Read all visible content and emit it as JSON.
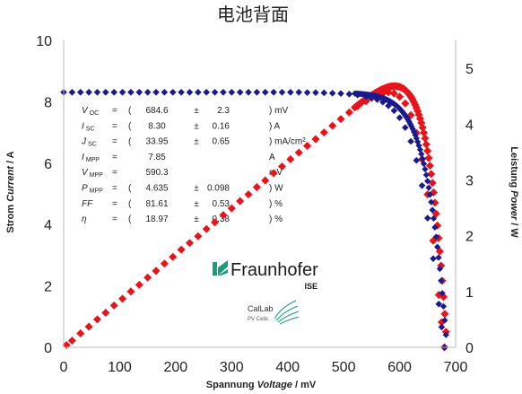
{
  "chart_data": {
    "type": "scatter",
    "title": "电池背面",
    "xlabel": {
      "pre": "Spannung ",
      "italic": "Voltage",
      "post": " / mV"
    },
    "ylabel": {
      "pre": "Strom ",
      "italic": "Current",
      "post": " / A"
    },
    "y2label": {
      "pre": "Leistung ",
      "italic": "Power",
      "post": " / W"
    },
    "xlim": [
      0,
      700
    ],
    "ylim": [
      0,
      10
    ],
    "y2lim": [
      0,
      5.5
    ],
    "x_ticks": [
      "0",
      "100",
      "200",
      "300",
      "400",
      "500",
      "600",
      "700"
    ],
    "y_ticks": [
      "0",
      "2",
      "4",
      "6",
      "8",
      "10"
    ],
    "y2_ticks": [
      "0",
      "1",
      "2",
      "3",
      "4",
      "5"
    ],
    "grid": false,
    "legend": "none",
    "colors": {
      "current": "#1a1a8c",
      "power": "#e8141b"
    },
    "model": {
      "Isc": 8.3,
      "Voc": 684.6,
      "Vt": 27.8,
      "Rs": 1.0
    },
    "series": [
      {
        "key": "current",
        "axis": "left",
        "points": [
          [
            0,
            8.31
          ],
          [
            15,
            8.31
          ],
          [
            30,
            8.31
          ],
          [
            45,
            8.31
          ],
          [
            60,
            8.31
          ],
          [
            75,
            8.31
          ],
          [
            90,
            8.31
          ],
          [
            105,
            8.31
          ],
          [
            120,
            8.31
          ],
          [
            135,
            8.31
          ],
          [
            150,
            8.31
          ],
          [
            165,
            8.31
          ],
          [
            180,
            8.31
          ],
          [
            195,
            8.31
          ],
          [
            210,
            8.31
          ],
          [
            225,
            8.31
          ],
          [
            240,
            8.31
          ],
          [
            255,
            8.31
          ],
          [
            270,
            8.31
          ],
          [
            285,
            8.31
          ],
          [
            300,
            8.31
          ],
          [
            315,
            8.31
          ],
          [
            330,
            8.31
          ],
          [
            345,
            8.31
          ],
          [
            360,
            8.31
          ],
          [
            375,
            8.31
          ],
          [
            390,
            8.31
          ],
          [
            405,
            8.31
          ],
          [
            420,
            8.31
          ],
          [
            435,
            8.3
          ],
          [
            450,
            8.3
          ],
          [
            465,
            8.29
          ],
          [
            480,
            8.28
          ],
          [
            495,
            8.27
          ],
          [
            510,
            8.25
          ],
          [
            525,
            8.22
          ],
          [
            540,
            8.17
          ],
          [
            550,
            8.13
          ],
          [
            560,
            8.07
          ],
          [
            570,
            7.99
          ],
          [
            580,
            7.87
          ],
          [
            590,
            7.71
          ],
          [
            600,
            7.48
          ],
          [
            610,
            7.16
          ],
          [
            620,
            6.71
          ],
          [
            630,
            6.09
          ],
          [
            640,
            5.27
          ],
          [
            650,
            4.21
          ],
          [
            660,
            2.89
          ],
          [
            670,
            1.41
          ],
          [
            675,
            0.66
          ],
          [
            680,
            0.0
          ]
        ]
      },
      {
        "key": "power",
        "axis": "right",
        "points": [
          [
            5,
            0.04
          ],
          [
            15,
            0.12
          ],
          [
            30,
            0.25
          ],
          [
            45,
            0.37
          ],
          [
            60,
            0.5
          ],
          [
            75,
            0.62
          ],
          [
            90,
            0.75
          ],
          [
            105,
            0.87
          ],
          [
            120,
            1.0
          ],
          [
            135,
            1.12
          ],
          [
            150,
            1.25
          ],
          [
            165,
            1.37
          ],
          [
            180,
            1.5
          ],
          [
            195,
            1.62
          ],
          [
            210,
            1.75
          ],
          [
            225,
            1.87
          ],
          [
            240,
            1.99
          ],
          [
            255,
            2.12
          ],
          [
            270,
            2.24
          ],
          [
            285,
            2.37
          ],
          [
            300,
            2.49
          ],
          [
            315,
            2.62
          ],
          [
            330,
            2.74
          ],
          [
            345,
            2.87
          ],
          [
            360,
            2.99
          ],
          [
            375,
            3.12
          ],
          [
            390,
            3.24
          ],
          [
            405,
            3.37
          ],
          [
            420,
            3.49
          ],
          [
            435,
            3.61
          ],
          [
            450,
            3.73
          ],
          [
            465,
            3.85
          ],
          [
            480,
            3.97
          ],
          [
            495,
            4.09
          ],
          [
            510,
            4.21
          ],
          [
            525,
            4.32
          ],
          [
            540,
            4.41
          ],
          [
            550,
            4.47
          ],
          [
            560,
            4.52
          ],
          [
            570,
            4.55
          ],
          [
            580,
            4.57
          ],
          [
            590,
            4.55
          ],
          [
            600,
            4.49
          ],
          [
            610,
            4.37
          ],
          [
            620,
            4.16
          ],
          [
            630,
            3.84
          ],
          [
            640,
            3.37
          ],
          [
            650,
            2.74
          ],
          [
            660,
            1.91
          ],
          [
            670,
            0.94
          ],
          [
            675,
            0.45
          ],
          [
            680,
            0.0
          ]
        ]
      }
    ],
    "params_table": [
      {
        "sym": "V",
        "sub": "OC",
        "eq": "=",
        "paren": "(",
        "val": "684.6",
        "pm": "±",
        "unc": "2.3",
        "unit": ") mV"
      },
      {
        "sym": "I",
        "sub": "SC",
        "eq": "=",
        "paren": "(",
        "val": "8.30",
        "pm": "±",
        "unc": "0.16",
        "unit": ") A"
      },
      {
        "sym": "J",
        "sub": "SC",
        "eq": "=",
        "paren": "(",
        "val": "33.95",
        "pm": "±",
        "unc": "0.65",
        "unit": ") mA/cm²"
      },
      {
        "sym": "I",
        "sub": "MPP",
        "eq": "=",
        "paren": "",
        "val": "7.85",
        "pm": "",
        "unc": "",
        "unit": "A"
      },
      {
        "sym": "V",
        "sub": "MPP",
        "eq": "=",
        "paren": "",
        "val": "590.3",
        "pm": "",
        "unc": "",
        "unit": "mV"
      },
      {
        "sym": "P",
        "sub": "MPP",
        "eq": "=",
        "paren": "(",
        "val": "4.635",
        "pm": "±",
        "unc": "0.098",
        "unit": ") W"
      },
      {
        "sym": "FF",
        "sub": "",
        "eq": "=",
        "paren": "(",
        "val": "81.61",
        "pm": "±",
        "unc": "0.53",
        "unit": ") %"
      },
      {
        "sym": "η",
        "sub": "",
        "eq": "=",
        "paren": "(",
        "val": "18.97",
        "pm": "±",
        "unc": "0.38",
        "unit": ") %"
      }
    ]
  },
  "logo": {
    "name": "Fraunhofer",
    "sub": "ISE",
    "color": "#179c7d"
  },
  "callab": {
    "name": "CalLab",
    "sub": "PV Cells",
    "color": "#179c7d"
  }
}
